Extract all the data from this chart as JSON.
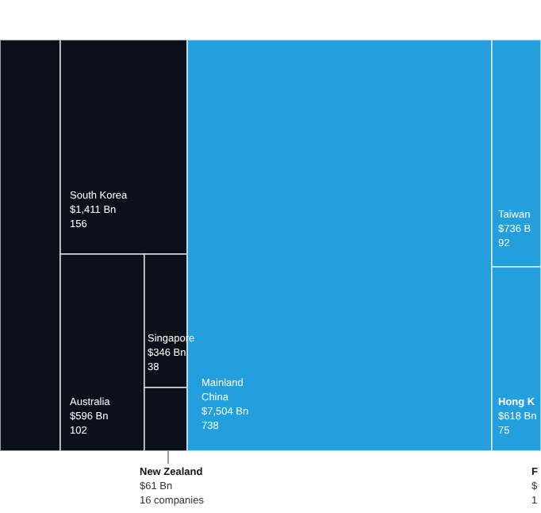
{
  "chart_data": {
    "type": "other",
    "categories": [
      null,
      "South Korea",
      "Australia",
      "Singapore",
      "New Zealand",
      "Mainland China",
      "Taiwan",
      "Hong K",
      "F"
    ],
    "series": [
      {
        "colors": [
          "#0b111a",
          "#0b111a",
          "#0b111a",
          "#0b111a",
          "#0b111a",
          "#249fdd",
          "#249fdd",
          "#249fdd",
          null
        ],
        "values": [
          null,
          1411,
          596,
          346,
          61,
          7504,
          736,
          618,
          null
        ],
        "value_labels": [
          null,
          "$1,411 Bn",
          "$596 Bn",
          "$346 Bn",
          "$61 Bn",
          "$7,504 Bn",
          "$736 B",
          "$618 Bn",
          "$"
        ]
      },
      {
        "values": [
          null,
          156,
          102,
          38,
          16,
          738,
          92,
          75,
          null
        ],
        "value_labels": [
          null,
          "156",
          "102",
          "38",
          "16 companies",
          "738",
          "92",
          "75",
          "1"
        ]
      }
    ]
  }
}
